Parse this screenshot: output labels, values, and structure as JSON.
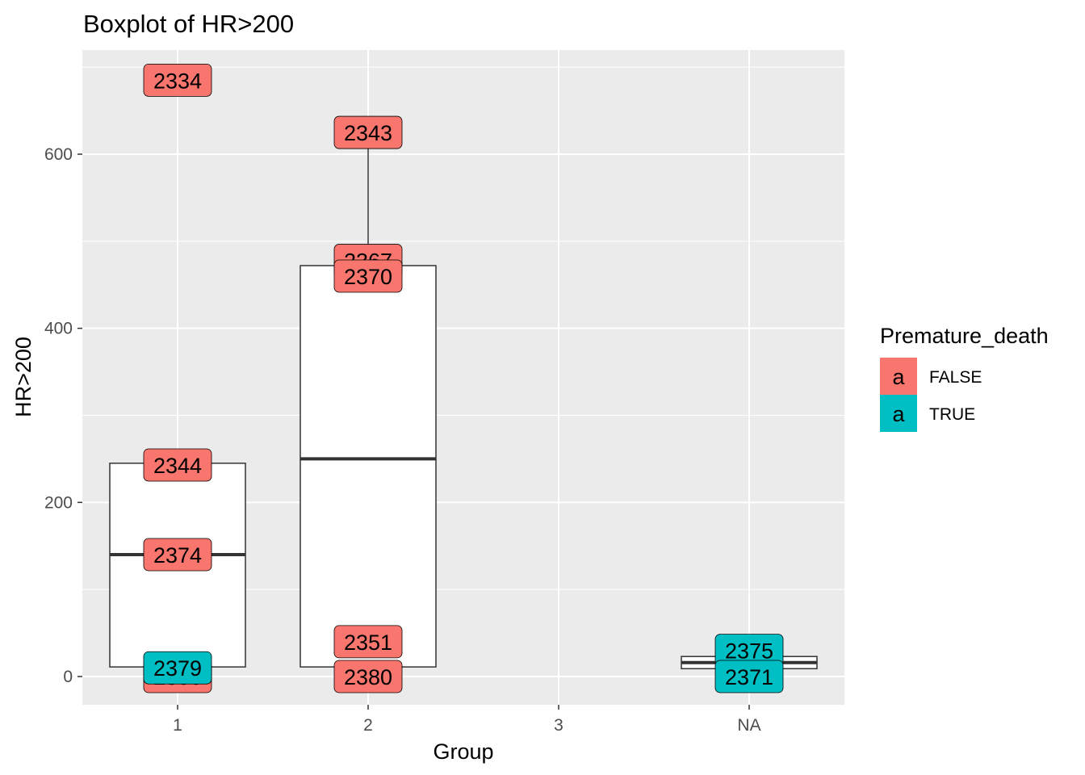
{
  "chart_data": {
    "type": "boxplot",
    "title": "Boxplot of  HR>200",
    "xlabel": "Group",
    "ylabel": "HR>200",
    "categories": [
      "1",
      "2",
      "3",
      "NA"
    ],
    "y_ticks": [
      0,
      200,
      400,
      600
    ],
    "y_tick_labels": [
      "0",
      "200",
      "400",
      "600"
    ],
    "ylim": [
      -32,
      718
    ],
    "grid": true,
    "legend": {
      "title": "Premature_death",
      "position": "right",
      "key_glyph": "a",
      "entries": [
        {
          "label": "FALSE",
          "color": "#F8766D"
        },
        {
          "label": "TRUE",
          "color": "#00BFC4"
        }
      ]
    },
    "boxes": [
      {
        "category": "1",
        "lower": 11,
        "q1": 11,
        "median": 140,
        "q3": 245,
        "upper": 245
      },
      {
        "category": "2",
        "lower": 11,
        "q1": 11,
        "median": 250,
        "q3": 472,
        "upper": 610
      },
      {
        "category": "NA",
        "lower": 9,
        "q1": 9,
        "median": 16,
        "q3": 23,
        "upper": 23
      }
    ],
    "points": [
      {
        "category": "1",
        "y": 685,
        "label": "2334",
        "premature_death": "FALSE"
      },
      {
        "category": "1",
        "y": 243,
        "label": "2344",
        "premature_death": "FALSE"
      },
      {
        "category": "1",
        "y": 140,
        "label": "2374",
        "premature_death": "FALSE"
      },
      {
        "category": "1",
        "y": 0,
        "label": "2306",
        "premature_death": "FALSE"
      },
      {
        "category": "1",
        "y": 10,
        "label": "2379",
        "premature_death": "TRUE"
      },
      {
        "category": "2",
        "y": 625,
        "label": "2343",
        "premature_death": "FALSE"
      },
      {
        "category": "2",
        "y": 478,
        "label": "2367",
        "premature_death": "FALSE"
      },
      {
        "category": "2",
        "y": 460,
        "label": "2370",
        "premature_death": "FALSE"
      },
      {
        "category": "2",
        "y": 40,
        "label": "2351",
        "premature_death": "FALSE"
      },
      {
        "category": "2",
        "y": 0,
        "label": "2380",
        "premature_death": "FALSE"
      },
      {
        "category": "NA",
        "y": 30,
        "label": "2375",
        "premature_death": "TRUE"
      },
      {
        "category": "NA",
        "y": 0,
        "label": "2371",
        "premature_death": "TRUE"
      }
    ]
  }
}
